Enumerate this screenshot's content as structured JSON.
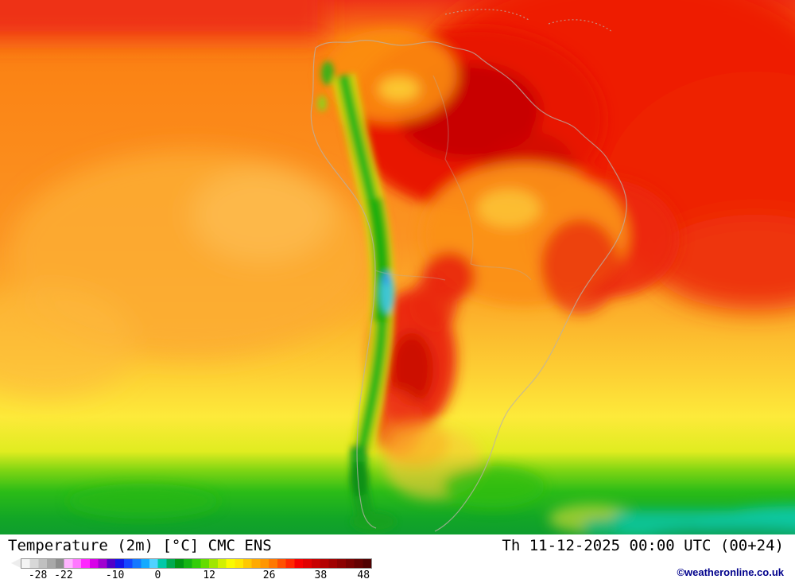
{
  "footer": {
    "title": "Temperature (2m) [°C] CMC ENS",
    "datetime": "Th 11-12-2025 00:00 UTC (00+24)",
    "copyright": "©weatheronline.co.uk"
  },
  "colorbar": {
    "unit": "°C",
    "min": -32,
    "max": 50,
    "ticks": [
      -28,
      -22,
      -10,
      0,
      12,
      26,
      38,
      48
    ],
    "stops": [
      {
        "v": -32,
        "c": "#f4f4f4"
      },
      {
        "v": -30,
        "c": "#d8d8d8"
      },
      {
        "v": -28,
        "c": "#c0c0c0"
      },
      {
        "v": -26,
        "c": "#a8a8a8"
      },
      {
        "v": -24,
        "c": "#8e8e8e"
      },
      {
        "v": -22,
        "c": "#ffb4ff"
      },
      {
        "v": -20,
        "c": "#ff78ff"
      },
      {
        "v": -18,
        "c": "#ff28ff"
      },
      {
        "v": -16,
        "c": "#d800e8"
      },
      {
        "v": -14,
        "c": "#a000d0"
      },
      {
        "v": -12,
        "c": "#5000c8"
      },
      {
        "v": -10,
        "c": "#1414e6"
      },
      {
        "v": -8,
        "c": "#1446ff"
      },
      {
        "v": -6,
        "c": "#1478ff"
      },
      {
        "v": -4,
        "c": "#14aaff"
      },
      {
        "v": -2,
        "c": "#50d2ff"
      },
      {
        "v": 0,
        "c": "#00c8a8"
      },
      {
        "v": 2,
        "c": "#00aa50"
      },
      {
        "v": 4,
        "c": "#009614"
      },
      {
        "v": 6,
        "c": "#14b414"
      },
      {
        "v": 8,
        "c": "#32cd0a"
      },
      {
        "v": 10,
        "c": "#64dc00"
      },
      {
        "v": 12,
        "c": "#a0e600"
      },
      {
        "v": 14,
        "c": "#d2f000"
      },
      {
        "v": 16,
        "c": "#fafa00"
      },
      {
        "v": 18,
        "c": "#ffe600"
      },
      {
        "v": 20,
        "c": "#ffc800"
      },
      {
        "v": 22,
        "c": "#ffaa00"
      },
      {
        "v": 24,
        "c": "#ff9600"
      },
      {
        "v": 26,
        "c": "#ff7800"
      },
      {
        "v": 28,
        "c": "#ff5000"
      },
      {
        "v": 30,
        "c": "#ff2800"
      },
      {
        "v": 32,
        "c": "#f50000"
      },
      {
        "v": 34,
        "c": "#e00000"
      },
      {
        "v": 36,
        "c": "#c80000"
      },
      {
        "v": 38,
        "c": "#b40000"
      },
      {
        "v": 40,
        "c": "#a00000"
      },
      {
        "v": 42,
        "c": "#8c0000"
      },
      {
        "v": 44,
        "c": "#780000"
      },
      {
        "v": 46,
        "c": "#640000"
      },
      {
        "v": 48,
        "c": "#500000"
      },
      {
        "v": 50,
        "c": "#3c0000"
      }
    ]
  }
}
